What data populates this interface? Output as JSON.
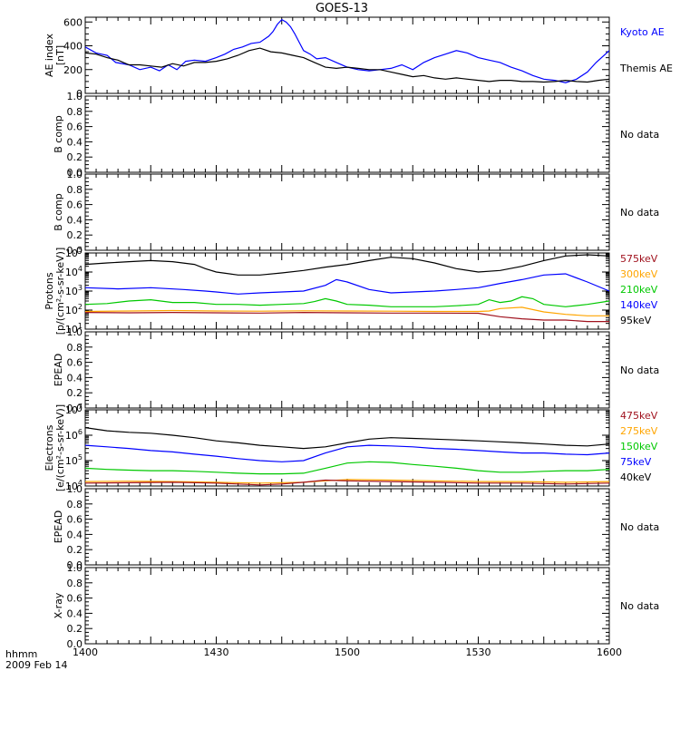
{
  "chart_data": {
    "title": "GOES-13",
    "type": "line",
    "x_axis": {
      "ticks": [
        "1400",
        "1430",
        "1500",
        "1530",
        "1600"
      ],
      "range_hhmm": [
        "1400",
        "1600"
      ],
      "label": "hhmm",
      "date": "2009 Feb 14"
    },
    "panels": [
      {
        "id": "ae",
        "type": "line",
        "ylabel": "AE index",
        "ylabel2": "[nT]",
        "ylim": [
          0,
          640
        ],
        "yticks": [
          "0",
          "200",
          "400",
          "600"
        ],
        "yscale": "linear",
        "legend": [
          {
            "text": "Kyoto AE",
            "color": "#0000ff"
          },
          {
            "text": "Themis AE",
            "color": "#000000"
          }
        ],
        "series": [
          {
            "name": "Kyoto AE",
            "color": "#0000ff",
            "x": [
              0,
              5,
              10,
              14,
              20,
              25,
              30,
              34,
              38,
              42,
              46,
              50,
              55,
              60,
              64,
              68,
              72,
              76,
              80,
              84,
              86,
              88,
              90,
              92,
              94,
              96,
              98,
              100,
              103,
              106,
              110,
              115,
              120,
              125,
              130,
              135,
              140,
              145,
              150,
              155,
              160,
              165,
              170,
              175,
              180,
              185,
              190,
              195,
              200,
              205,
              210,
              215,
              220,
              225,
              230,
              234,
              240
            ],
            "y": [
              390,
              340,
              320,
              260,
              240,
              200,
              220,
              190,
              240,
              200,
              270,
              280,
              270,
              300,
              330,
              370,
              390,
              420,
              430,
              480,
              520,
              580,
              620,
              600,
              560,
              500,
              430,
              360,
              330,
              290,
              300,
              260,
              220,
              200,
              190,
              200,
              210,
              240,
              200,
              260,
              300,
              330,
              360,
              340,
              300,
              280,
              260,
              220,
              190,
              150,
              120,
              110,
              90,
              120,
              180,
              260,
              360
            ]
          },
          {
            "name": "Themis AE",
            "color": "#000000",
            "x": [
              0,
              5,
              10,
              15,
              20,
              25,
              30,
              35,
              40,
              45,
              50,
              55,
              60,
              65,
              70,
              75,
              80,
              85,
              90,
              95,
              100,
              105,
              110,
              115,
              120,
              125,
              130,
              135,
              140,
              145,
              150,
              155,
              160,
              165,
              170,
              175,
              180,
              185,
              190,
              195,
              200,
              205,
              210,
              215,
              220,
              225,
              230,
              235,
              240
            ],
            "y": [
              340,
              330,
              300,
              280,
              240,
              240,
              230,
              220,
              250,
              230,
              260,
              260,
              270,
              290,
              320,
              360,
              380,
              350,
              340,
              320,
              300,
              260,
              220,
              210,
              220,
              210,
              200,
              200,
              180,
              160,
              140,
              150,
              130,
              120,
              130,
              120,
              110,
              100,
              110,
              110,
              100,
              100,
              95,
              100,
              110,
              100,
              95,
              110,
              120
            ]
          }
        ]
      },
      {
        "id": "bcomp1",
        "ylabel": "B comp",
        "ylim": [
          0,
          1
        ],
        "yticks": [
          "0.0",
          "0.2",
          "0.4",
          "0.6",
          "0.8",
          "1.0"
        ],
        "yscale": "linear",
        "message": "No data",
        "series": []
      },
      {
        "id": "bcomp2",
        "ylabel": "B comp",
        "ylim": [
          0,
          1
        ],
        "yticks": [
          "0.0",
          "0.2",
          "0.4",
          "0.6",
          "0.8",
          "1.0"
        ],
        "yscale": "linear",
        "message": "No data",
        "series": []
      },
      {
        "id": "protons",
        "type": "line",
        "ylabel": "Protons",
        "ylabel2": "[p/(cm²-s-sr-keV)]",
        "ylim": [
          10,
          100000
        ],
        "yscale": "log",
        "ytick_exponents": [
          1,
          2,
          3,
          4,
          5
        ],
        "legend": [
          {
            "text": "575keV",
            "color": "#a0121e"
          },
          {
            "text": "300keV",
            "color": "#ffa500"
          },
          {
            "text": "210keV",
            "color": "#00c800"
          },
          {
            "text": "140keV",
            "color": "#0000ff"
          },
          {
            "text": "95keV",
            "color": "#000000"
          }
        ],
        "series": [
          {
            "name": "95keV",
            "color": "#000000",
            "x": [
              0,
              10,
              20,
              30,
              40,
              50,
              55,
              60,
              70,
              80,
              90,
              100,
              110,
              120,
              130,
              140,
              150,
              160,
              170,
              180,
              190,
              200,
              210,
              220,
              230,
              240
            ],
            "y": [
              25000,
              30000,
              35000,
              40000,
              35000,
              25000,
              15000,
              10000,
              7000,
              7000,
              9000,
              12000,
              18000,
              25000,
              40000,
              60000,
              50000,
              30000,
              15000,
              10000,
              12000,
              20000,
              40000,
              70000,
              80000,
              70000
            ]
          },
          {
            "name": "140keV",
            "color": "#0000ff",
            "x": [
              0,
              15,
              30,
              45,
              55,
              60,
              70,
              80,
              90,
              100,
              110,
              115,
              120,
              130,
              140,
              150,
              160,
              170,
              180,
              190,
              200,
              210,
              220,
              230,
              240
            ],
            "y": [
              1500,
              1300,
              1500,
              1200,
              1000,
              900,
              700,
              800,
              900,
              1000,
              2000,
              4000,
              3000,
              1200,
              800,
              900,
              1000,
              1200,
              1500,
              2500,
              4000,
              7000,
              8000,
              3000,
              1000
            ]
          },
          {
            "name": "210keV",
            "color": "#00c800",
            "x": [
              0,
              10,
              20,
              30,
              40,
              50,
              60,
              70,
              80,
              90,
              100,
              105,
              110,
              115,
              120,
              130,
              140,
              150,
              160,
              170,
              180,
              185,
              190,
              195,
              200,
              205,
              210,
              220,
              230,
              240
            ],
            "y": [
              200,
              220,
              300,
              350,
              250,
              250,
              200,
              200,
              180,
              200,
              220,
              280,
              400,
              300,
              200,
              180,
              150,
              150,
              150,
              170,
              200,
              350,
              250,
              300,
              500,
              400,
              200,
              150,
              200,
              300
            ]
          },
          {
            "name": "300keV",
            "color": "#ffa500",
            "x": [
              0,
              20,
              40,
              60,
              80,
              100,
              120,
              140,
              160,
              180,
              185,
              190,
              200,
              210,
              220,
              230,
              240
            ],
            "y": [
              85,
              90,
              95,
              90,
              88,
              92,
              90,
              88,
              85,
              85,
              90,
              120,
              140,
              80,
              60,
              50,
              50
            ]
          },
          {
            "name": "575keV",
            "color": "#a0121e",
            "x": [
              0,
              20,
              40,
              60,
              80,
              100,
              120,
              140,
              160,
              180,
              190,
              200,
              210,
              220,
              230,
              240
            ],
            "y": [
              75,
              72,
              75,
              72,
              70,
              75,
              72,
              70,
              70,
              68,
              45,
              35,
              30,
              30,
              25,
              25
            ]
          }
        ]
      },
      {
        "id": "epead1",
        "ylabel": "EPEAD",
        "ylim": [
          0,
          1
        ],
        "yticks": [
          "0.0",
          "0.2",
          "0.4",
          "0.6",
          "0.8",
          "1.0"
        ],
        "yscale": "linear",
        "message": "No data",
        "series": []
      },
      {
        "id": "electrons",
        "type": "line",
        "ylabel": "Electrons",
        "ylabel2": "[e/(cm²-s-sr-keV)]",
        "ylim": [
          10000,
          10000000
        ],
        "yscale": "log",
        "ytick_exponents": [
          4,
          5,
          6,
          7
        ],
        "legend": [
          {
            "text": "475keV",
            "color": "#a0121e"
          },
          {
            "text": "275keV",
            "color": "#ffa500"
          },
          {
            "text": "150keV",
            "color": "#00c800"
          },
          {
            "text": "75keV",
            "color": "#0000ff"
          },
          {
            "text": "40keV",
            "color": "#000000"
          }
        ],
        "series": [
          {
            "name": "40keV",
            "color": "#000000",
            "x": [
              0,
              10,
              20,
              30,
              40,
              50,
              60,
              70,
              80,
              90,
              100,
              110,
              120,
              130,
              140,
              150,
              160,
              170,
              180,
              190,
              200,
              210,
              220,
              230,
              240
            ],
            "y": [
              2000000,
              1500000,
              1300000,
              1200000,
              1000000,
              800000,
              600000,
              500000,
              400000,
              350000,
              300000,
              350000,
              500000,
              700000,
              800000,
              750000,
              700000,
              650000,
              600000,
              550000,
              500000,
              450000,
              400000,
              380000,
              450000
            ]
          },
          {
            "name": "75keV",
            "color": "#0000ff",
            "x": [
              0,
              10,
              20,
              30,
              40,
              50,
              60,
              70,
              80,
              90,
              100,
              110,
              120,
              130,
              140,
              150,
              160,
              170,
              180,
              190,
              200,
              210,
              220,
              230,
              240
            ],
            "y": [
              400000,
              350000,
              300000,
              250000,
              220000,
              180000,
              150000,
              120000,
              100000,
              90000,
              100000,
              200000,
              350000,
              400000,
              380000,
              350000,
              300000,
              280000,
              250000,
              220000,
              200000,
              200000,
              180000,
              170000,
              200000
            ]
          },
          {
            "name": "150keV",
            "color": "#00c800",
            "x": [
              0,
              10,
              20,
              30,
              40,
              50,
              60,
              70,
              80,
              90,
              100,
              110,
              120,
              130,
              140,
              150,
              160,
              170,
              180,
              190,
              200,
              210,
              220,
              230,
              240
            ],
            "y": [
              50000,
              45000,
              42000,
              40000,
              40000,
              38000,
              35000,
              32000,
              30000,
              30000,
              32000,
              50000,
              80000,
              90000,
              85000,
              70000,
              60000,
              50000,
              40000,
              35000,
              35000,
              38000,
              40000,
              40000,
              45000
            ]
          },
          {
            "name": "275keV",
            "color": "#ffa500",
            "x": [
              0,
              20,
              40,
              60,
              80,
              100,
              110,
              120,
              140,
              160,
              180,
              200,
              220,
              240
            ],
            "y": [
              15000,
              15500,
              15000,
              14000,
              13000,
              14000,
              16000,
              18000,
              17000,
              16000,
              15000,
              15000,
              14000,
              15000
            ]
          },
          {
            "name": "475keV",
            "color": "#a0121e",
            "x": [
              0,
              20,
              40,
              60,
              80,
              90,
              100,
              110,
              120,
              140,
              160,
              180,
              200,
              220,
              240
            ],
            "y": [
              13000,
              13500,
              14000,
              13000,
              11000,
              12000,
              14000,
              17000,
              16000,
              15000,
              14000,
              13000,
              13000,
              12000,
              13000
            ]
          }
        ]
      },
      {
        "id": "epead2",
        "ylabel": "EPEAD",
        "ylim": [
          0,
          1
        ],
        "yticks": [
          "0.0",
          "0.2",
          "0.4",
          "0.6",
          "0.8",
          "1.0"
        ],
        "yscale": "linear",
        "message": "No data",
        "series": []
      },
      {
        "id": "xray",
        "ylabel": "X-ray",
        "ylim": [
          0,
          1
        ],
        "yticks": [
          "0.0",
          "0.2",
          "0.4",
          "0.6",
          "0.8",
          "1.0"
        ],
        "yscale": "linear",
        "message": "No data",
        "series": []
      }
    ]
  }
}
